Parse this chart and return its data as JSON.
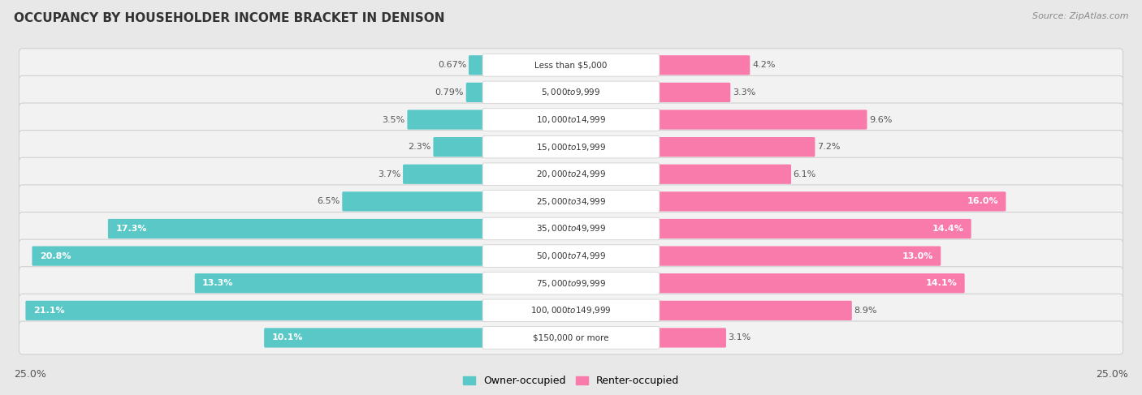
{
  "title": "OCCUPANCY BY HOUSEHOLDER INCOME BRACKET IN DENISON",
  "source": "Source: ZipAtlas.com",
  "categories": [
    "Less than $5,000",
    "$5,000 to $9,999",
    "$10,000 to $14,999",
    "$15,000 to $19,999",
    "$20,000 to $24,999",
    "$25,000 to $34,999",
    "$35,000 to $49,999",
    "$50,000 to $74,999",
    "$75,000 to $99,999",
    "$100,000 to $149,999",
    "$150,000 or more"
  ],
  "owner_values": [
    0.67,
    0.79,
    3.5,
    2.3,
    3.7,
    6.5,
    17.3,
    20.8,
    13.3,
    21.1,
    10.1
  ],
  "renter_values": [
    4.2,
    3.3,
    9.6,
    7.2,
    6.1,
    16.0,
    14.4,
    13.0,
    14.1,
    8.9,
    3.1
  ],
  "owner_color": "#5BC8C8",
  "renter_color": "#F87BAC",
  "owner_label": "Owner-occupied",
  "renter_label": "Renter-occupied",
  "x_max": 25.0,
  "background_color": "#e8e8e8",
  "row_bg_color": "#f2f2f2",
  "row_border_color": "#d0d0d0",
  "bar_background": "#ffffff",
  "title_fontsize": 11,
  "source_fontsize": 8,
  "axis_label_fontsize": 9,
  "bar_label_fontsize": 8,
  "category_fontsize": 7.5,
  "legend_fontsize": 9
}
